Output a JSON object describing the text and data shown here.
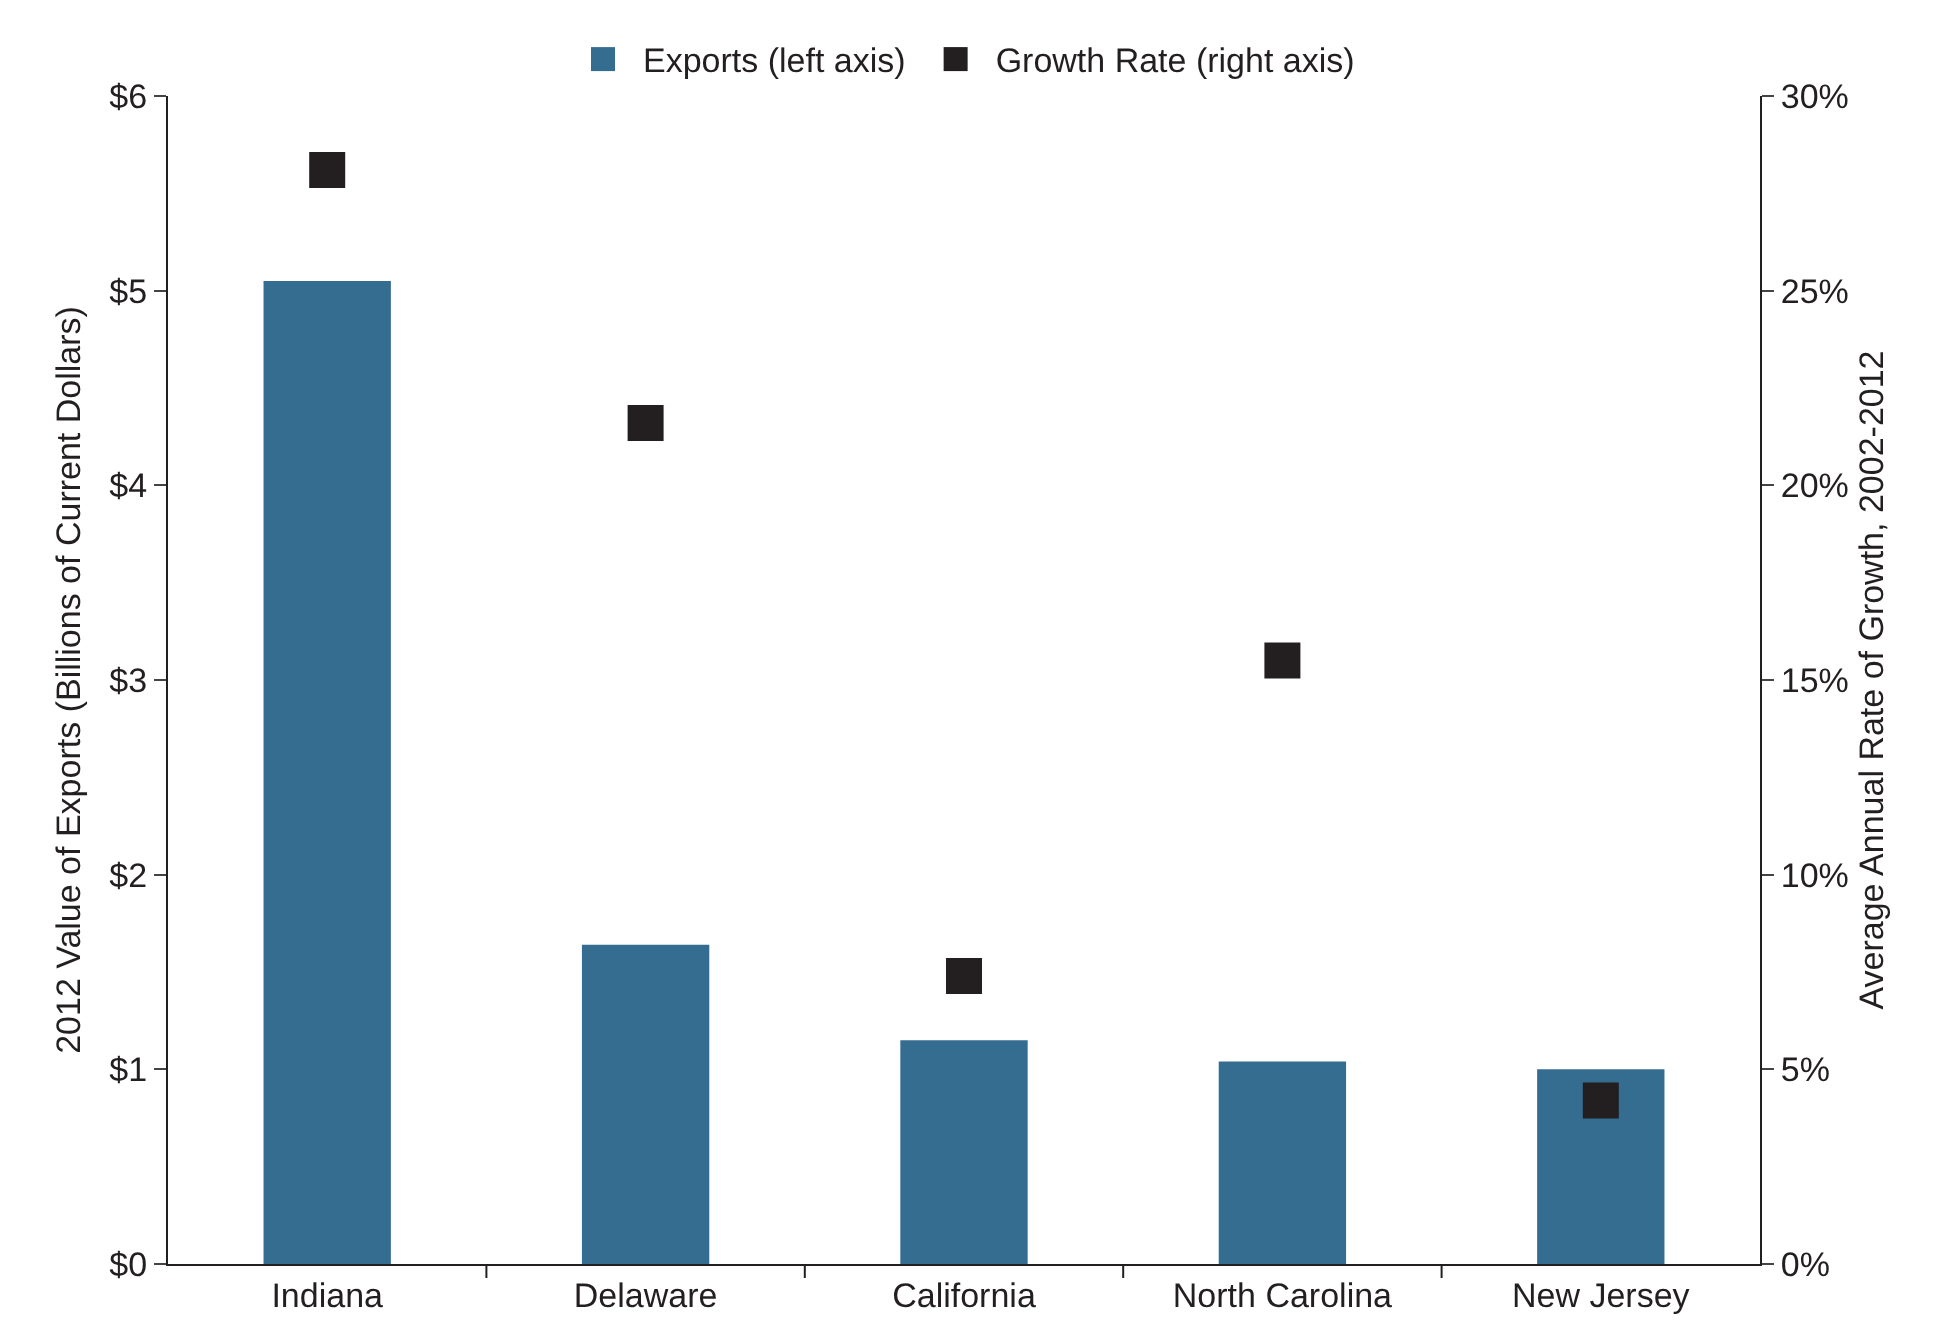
{
  "chart_data": {
    "type": "bar",
    "ylabel": "2012 Value of Exports (Billions of Current Dollars)",
    "y2label": "Average Annual Rate of Growth, 2002-2012",
    "categories": [
      "Indiana",
      "Delaware",
      "California",
      "North Carolina",
      "New Jersey"
    ],
    "series": [
      {
        "name": "Exports (left axis)",
        "color": "#356d90",
        "values": [
          5.05,
          1.64,
          1.15,
          1.04,
          1.0
        ]
      },
      {
        "name": "Growth Rate (right axis)",
        "type": "scatter",
        "axis": "y2",
        "marker": "square",
        "color": "#231f20",
        "values": [
          28.1,
          21.6,
          7.4,
          15.5,
          4.2
        ]
      }
    ],
    "ylim": [
      0,
      6
    ],
    "yticks": [
      {
        "value": 0,
        "label": "$0"
      },
      {
        "value": 1,
        "label": "$1"
      },
      {
        "value": 2,
        "label": "$2"
      },
      {
        "value": 3,
        "label": "$3"
      },
      {
        "value": 4,
        "label": "$4"
      },
      {
        "value": 5,
        "label": "$5"
      },
      {
        "value": 6,
        "label": "$6"
      }
    ],
    "y2lim": [
      0,
      30
    ],
    "y2ticks": [
      {
        "value": 0,
        "label": "0%"
      },
      {
        "value": 5,
        "label": "5%"
      },
      {
        "value": 10,
        "label": "10%"
      },
      {
        "value": 15,
        "label": "15%"
      },
      {
        "value": 20,
        "label": "20%"
      },
      {
        "value": 25,
        "label": "25%"
      },
      {
        "value": 30,
        "label": "30%"
      }
    ],
    "grid": false,
    "legend": "top"
  }
}
